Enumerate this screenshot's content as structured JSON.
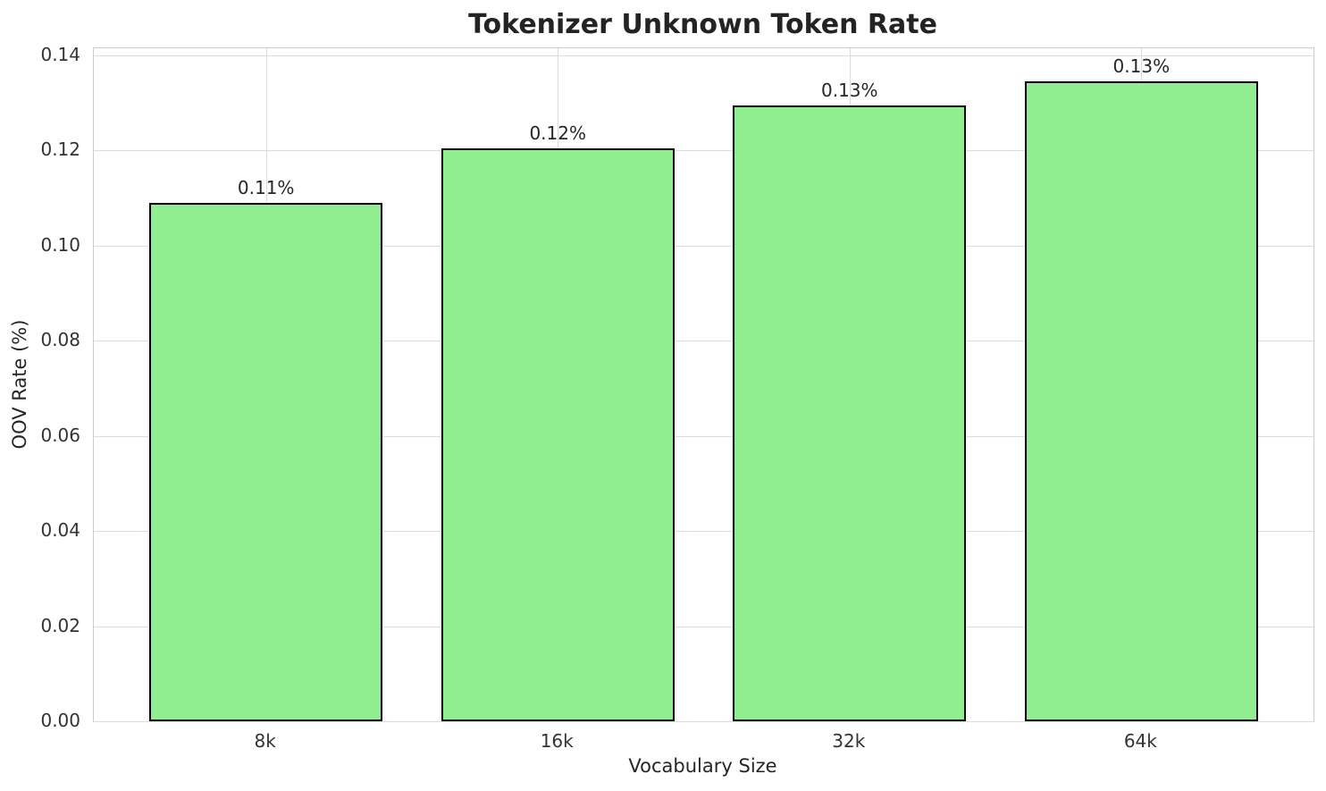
{
  "chart_data": {
    "type": "bar",
    "title": "Tokenizer Unknown Token Rate",
    "xlabel": "Vocabulary Size",
    "ylabel": "OOV Rate (%)",
    "categories": [
      "8k",
      "16k",
      "32k",
      "64k"
    ],
    "values": [
      0.109,
      0.1205,
      0.1295,
      0.1345
    ],
    "bar_labels": [
      "0.11%",
      "0.12%",
      "0.13%",
      "0.13%"
    ],
    "yticks": [
      0.0,
      0.02,
      0.04,
      0.06,
      0.08,
      0.1,
      0.12,
      0.14
    ],
    "ytick_labels": [
      "0.00",
      "0.02",
      "0.04",
      "0.06",
      "0.08",
      "0.10",
      "0.12",
      "0.14"
    ],
    "ylim": [
      0,
      0.1415
    ],
    "xlim": [
      -0.59,
      3.59
    ],
    "bar_width": 0.8,
    "grid": true,
    "legend": null,
    "colors": {
      "bar_fill": "#90EE90",
      "bar_edge": "#000000",
      "grid": "#dcdcdc",
      "spine": "#cccccc",
      "text": "#262626"
    }
  }
}
